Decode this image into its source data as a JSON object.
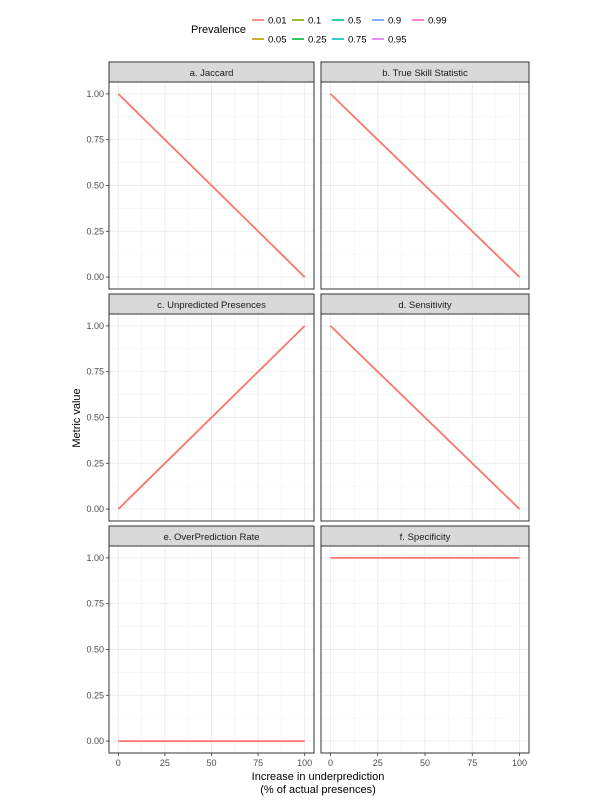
{
  "legend": {
    "title": "Prevalence",
    "items": [
      {
        "label": "0.01",
        "color": "#F8766D"
      },
      {
        "label": "0.05",
        "color": "#C49A00"
      },
      {
        "label": "0.1",
        "color": "#7CAE00"
      },
      {
        "label": "0.25",
        "color": "#00BA38"
      },
      {
        "label": "0.5",
        "color": "#00C08B"
      },
      {
        "label": "0.75",
        "color": "#00BFC4"
      },
      {
        "label": "0.9",
        "color": "#619CFF"
      },
      {
        "label": "0.95",
        "color": "#DB72FB"
      },
      {
        "label": "0.99",
        "color": "#FF61C3"
      }
    ]
  },
  "chart_data": {
    "type": "line",
    "xlabel_line1": "Increase in underprediction",
    "xlabel_line2": "(% of actual presences)",
    "ylabel": "Metric value",
    "xlim": [
      0,
      100
    ],
    "ylim": [
      0,
      1
    ],
    "x_ticks": [
      0,
      25,
      50,
      75,
      100
    ],
    "y_ticks": [
      "0.00",
      "0.25",
      "0.50",
      "0.75",
      "1.00"
    ],
    "grid": true,
    "legend_position": "top",
    "panels": [
      {
        "title": "a. Jaccard",
        "series": [
          {
            "name": "0.01",
            "x": [
              0,
              100
            ],
            "y": [
              1.0,
              0.0
            ]
          }
        ]
      },
      {
        "title": "b. True Skill Statistic",
        "series": [
          {
            "name": "0.01",
            "x": [
              0,
              100
            ],
            "y": [
              1.0,
              0.0
            ]
          }
        ]
      },
      {
        "title": "c. Unpredicted Presences",
        "series": [
          {
            "name": "0.01",
            "x": [
              0,
              100
            ],
            "y": [
              0.0,
              1.0
            ]
          }
        ]
      },
      {
        "title": "d. Sensitivity",
        "series": [
          {
            "name": "0.01",
            "x": [
              0,
              100
            ],
            "y": [
              1.0,
              0.0
            ]
          }
        ]
      },
      {
        "title": "e. OverPrediction Rate",
        "series": [
          {
            "name": "0.01",
            "x": [
              0,
              100
            ],
            "y": [
              0.0,
              0.0
            ]
          }
        ]
      },
      {
        "title": "f. Specificity",
        "series": [
          {
            "name": "0.01",
            "x": [
              0,
              100
            ],
            "y": [
              1.0,
              1.0
            ]
          }
        ]
      }
    ]
  }
}
